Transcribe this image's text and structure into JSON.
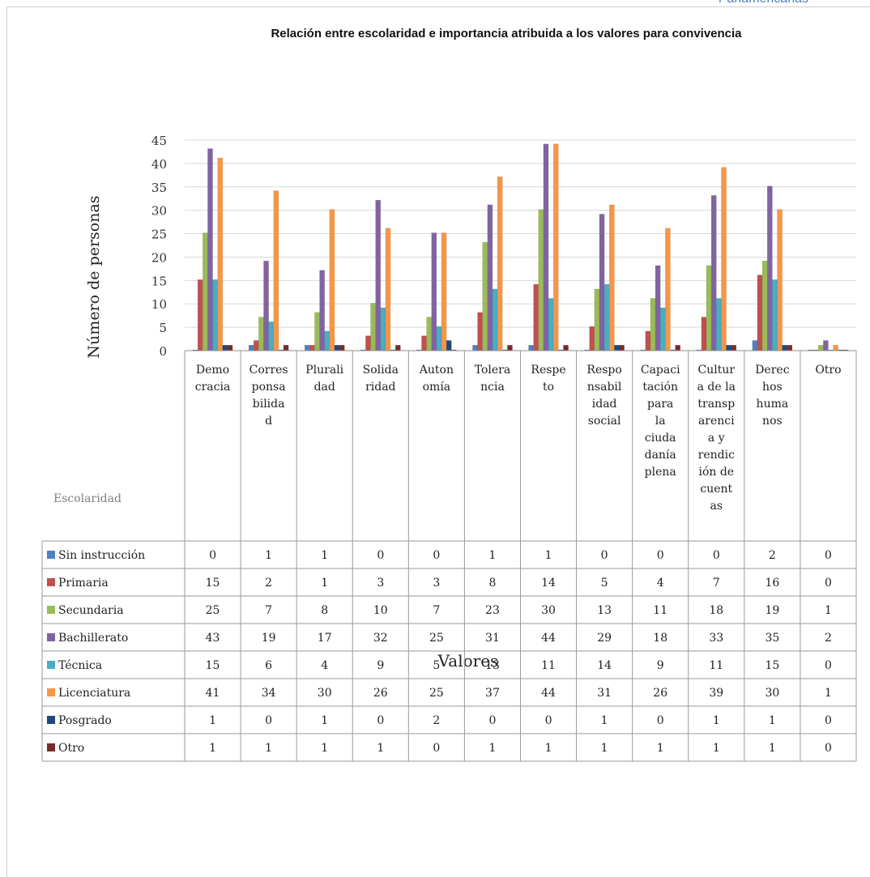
{
  "header": {
    "running_head": "Panamericanas"
  },
  "chart_data": {
    "type": "bar",
    "title": "Relación entre escolaridad e importancia atribuida a los valores para convivencia",
    "xlabel": "Valores",
    "ylabel": "Número de personas",
    "table_corner_label": "Escolaridad",
    "ylim": [
      0,
      45
    ],
    "yticks": [
      0,
      5,
      10,
      15,
      20,
      25,
      30,
      35,
      40,
      45
    ],
    "grid": true,
    "legend": "data-table-left",
    "categories": [
      "Democracia",
      "Corresponsabilidad",
      "Pluralidad",
      "Solidaridad",
      "Autonomía",
      "Tolerancia",
      "Respeto",
      "Responsabilidad social",
      "Capacitación para la ciudadanía plena",
      "Cultura de la transparencia y rendición de cuentas",
      "Derechos humanos",
      "Otro"
    ],
    "category_label_lines": [
      [
        "Demo",
        "cracia"
      ],
      [
        "Corres",
        "ponsa",
        "bilida",
        "d"
      ],
      [
        "Plurali",
        "dad"
      ],
      [
        "Solida",
        "ridad"
      ],
      [
        "Auton",
        "omía"
      ],
      [
        "Tolera",
        "ncia"
      ],
      [
        "Respe",
        "to"
      ],
      [
        "Respo",
        "nsabil",
        "idad",
        "social"
      ],
      [
        "Capaci",
        "tación",
        "para",
        "la",
        "ciuda",
        "danía",
        "plena"
      ],
      [
        "Cultur",
        "a de la",
        "transp",
        "arenci",
        "a y",
        "rendic",
        "ión de",
        "cuent",
        "as"
      ],
      [
        "Derec",
        "hos",
        "huma",
        "nos"
      ],
      [
        "Otro"
      ]
    ],
    "series": [
      {
        "name": "Sin instrucción",
        "color": "#4f81bd",
        "values": [
          0,
          1,
          1,
          0,
          0,
          1,
          1,
          0,
          0,
          0,
          2,
          0
        ]
      },
      {
        "name": "Primaria",
        "color": "#c0504d",
        "values": [
          15,
          2,
          1,
          3,
          3,
          8,
          14,
          5,
          4,
          7,
          16,
          0
        ]
      },
      {
        "name": "Secundaria",
        "color": "#9bbb59",
        "values": [
          25,
          7,
          8,
          10,
          7,
          23,
          30,
          13,
          11,
          18,
          19,
          1
        ]
      },
      {
        "name": "Bachillerato",
        "color": "#8064a2",
        "values": [
          43,
          19,
          17,
          32,
          25,
          31,
          44,
          29,
          18,
          33,
          35,
          2
        ]
      },
      {
        "name": "Técnica",
        "color": "#4bacc6",
        "values": [
          15,
          6,
          4,
          9,
          5,
          13,
          11,
          14,
          9,
          11,
          15,
          0
        ]
      },
      {
        "name": "Licenciatura",
        "color": "#f79646",
        "values": [
          41,
          34,
          30,
          26,
          25,
          37,
          44,
          31,
          26,
          39,
          30,
          1
        ]
      },
      {
        "name": "Posgrado",
        "color": "#1f497d",
        "values": [
          1,
          0,
          1,
          0,
          2,
          0,
          0,
          1,
          0,
          1,
          1,
          0
        ]
      },
      {
        "name": "Otro",
        "color": "#772c2a",
        "values": [
          1,
          1,
          1,
          1,
          0,
          1,
          1,
          1,
          1,
          1,
          1,
          0
        ]
      }
    ]
  }
}
